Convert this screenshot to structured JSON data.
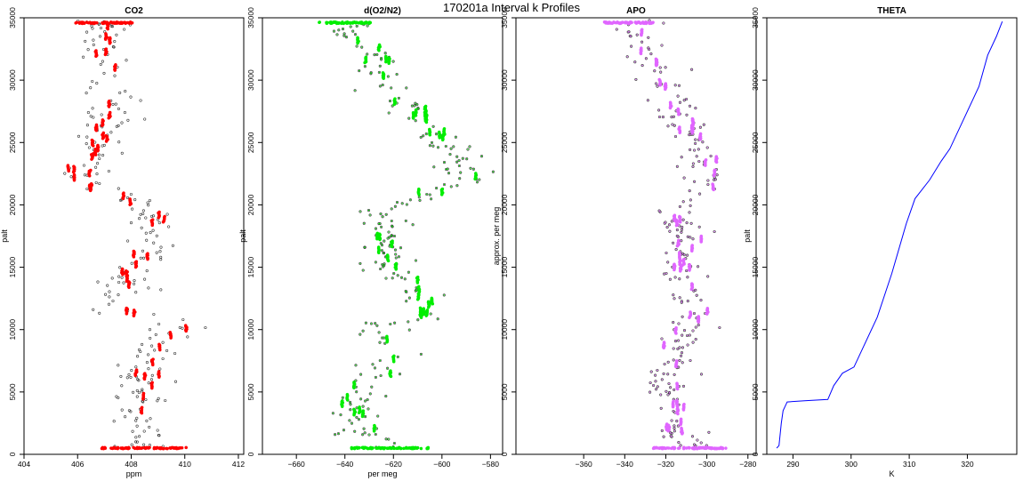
{
  "figure_title": "170201a   Interval k Profiles",
  "chart_data": [
    {
      "type": "scatter",
      "title": "CO2",
      "xlabel": "ppm",
      "ylabel": "palt",
      "xlim": [
        404,
        412.2
      ],
      "ylim": [
        0,
        35000
      ],
      "xticks": [
        404,
        406,
        408,
        410,
        412
      ],
      "yticks": [
        0,
        5000,
        10000,
        15000,
        20000,
        25000,
        30000,
        35000
      ],
      "color": "#ff0000",
      "profile": [
        [
          0,
          408.5
        ],
        [
          600,
          408.5
        ],
        [
          2000,
          408.4
        ],
        [
          4000,
          408.3
        ],
        [
          7000,
          408.6
        ],
        [
          9000,
          409.1
        ],
        [
          10500,
          410.0
        ],
        [
          11500,
          407.2
        ],
        [
          12500,
          407.7
        ],
        [
          14500,
          408.0
        ],
        [
          17000,
          408.9
        ],
        [
          19000,
          408.7
        ],
        [
          20500,
          408.2
        ],
        [
          21500,
          406.6
        ],
        [
          22500,
          406.2
        ],
        [
          25000,
          406.8
        ],
        [
          28000,
          407.4
        ],
        [
          31000,
          407.1
        ],
        [
          33000,
          407.0
        ],
        [
          34600,
          407.0
        ]
      ],
      "spread": 0.9
    },
    {
      "type": "scatter",
      "title": "d(O2/N2)",
      "xlabel": "per meg",
      "ylabel": "palt",
      "xlim": [
        -674,
        -575
      ],
      "ylim": [
        0,
        35000
      ],
      "xticks": [
        -660,
        -640,
        -620,
        -600,
        -580
      ],
      "yticks": [
        0,
        5000,
        10000,
        15000,
        20000,
        25000,
        30000,
        35000
      ],
      "color": "#00ee00",
      "profile": [
        [
          0,
          -621
        ],
        [
          600,
          -622
        ],
        [
          2000,
          -633
        ],
        [
          4000,
          -635
        ],
        [
          6000,
          -630
        ],
        [
          8000,
          -622
        ],
        [
          10500,
          -622
        ],
        [
          11500,
          -604
        ],
        [
          13000,
          -610
        ],
        [
          15000,
          -622
        ],
        [
          17500,
          -624
        ],
        [
          19500,
          -628
        ],
        [
          20500,
          -610
        ],
        [
          22000,
          -590
        ],
        [
          24000,
          -595
        ],
        [
          26000,
          -603
        ],
        [
          28000,
          -617
        ],
        [
          31000,
          -626
        ],
        [
          33000,
          -630
        ],
        [
          34600,
          -640
        ]
      ],
      "spread": 9
    },
    {
      "type": "scatter",
      "title": "APO",
      "xlabel": "",
      "ylabel": "approx. per meg",
      "xlim": [
        -393,
        -276
      ],
      "ylim": [
        0,
        35000
      ],
      "xticks": [
        -360,
        -340,
        -320,
        -300,
        -280
      ],
      "yticks": [
        0,
        5000,
        10000,
        15000,
        20000,
        25000,
        30000,
        35000
      ],
      "color": "#e066ff",
      "profile": [
        [
          0,
          -310
        ],
        [
          600,
          -308
        ],
        [
          2000,
          -315
        ],
        [
          4000,
          -317
        ],
        [
          6000,
          -318
        ],
        [
          8000,
          -314
        ],
        [
          10500,
          -312
        ],
        [
          11500,
          -305
        ],
        [
          13000,
          -308
        ],
        [
          15000,
          -311
        ],
        [
          17500,
          -313
        ],
        [
          19500,
          -314
        ],
        [
          20500,
          -306
        ],
        [
          22000,
          -298
        ],
        [
          24000,
          -303
        ],
        [
          26000,
          -308
        ],
        [
          28000,
          -316
        ],
        [
          31000,
          -322
        ],
        [
          33000,
          -330
        ],
        [
          34600,
          -338
        ]
      ],
      "spread": 10
    },
    {
      "type": "line",
      "title": "THETA",
      "xlabel": "K",
      "ylabel": "palt",
      "xlim": [
        285.5,
        328.5
      ],
      "ylim": [
        0,
        35000
      ],
      "xticks": [
        290,
        300,
        310,
        320
      ],
      "yticks": [
        0,
        5000,
        10000,
        15000,
        20000,
        25000,
        30000,
        35000
      ],
      "color": "#0000ff",
      "series": [
        [
          287.2,
          500
        ],
        [
          287.6,
          700
        ],
        [
          288.0,
          2500
        ],
        [
          288.3,
          3500
        ],
        [
          289.0,
          4200
        ],
        [
          292.0,
          4300
        ],
        [
          296.0,
          4400
        ],
        [
          297.0,
          5500
        ],
        [
          298.5,
          6500
        ],
        [
          300.5,
          7000
        ],
        [
          302.0,
          8500
        ],
        [
          304.5,
          11000
        ],
        [
          307.0,
          14500
        ],
        [
          309.5,
          18500
        ],
        [
          311.0,
          20500
        ],
        [
          313.5,
          22000
        ],
        [
          315.5,
          23500
        ],
        [
          317.0,
          24500
        ],
        [
          319.5,
          27000
        ],
        [
          321.0,
          28500
        ],
        [
          322.0,
          29500
        ],
        [
          323.5,
          32000
        ],
        [
          325.0,
          33500
        ],
        [
          326.0,
          34700
        ]
      ]
    }
  ]
}
